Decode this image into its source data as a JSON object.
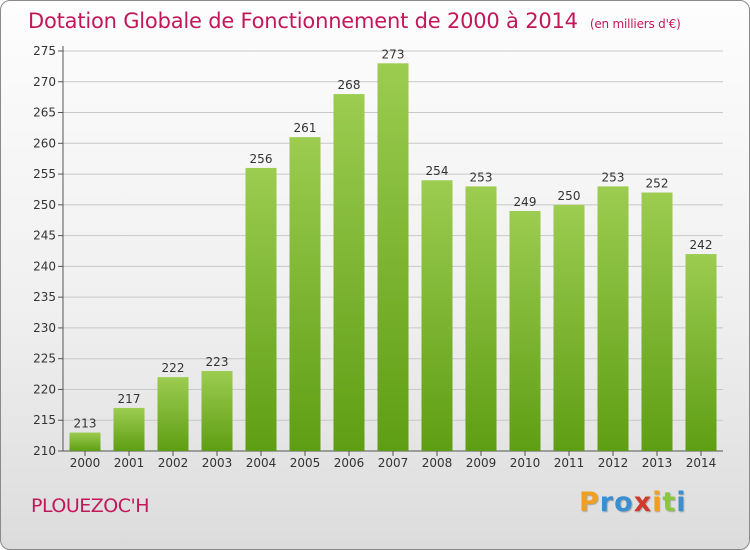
{
  "chart_data": {
    "type": "bar",
    "title": "Dotation Globale de Fonctionnement de 2000 à 2014",
    "subtitle": "(en milliers d'€)",
    "categories": [
      "2000",
      "2001",
      "2002",
      "2003",
      "2004",
      "2005",
      "2006",
      "2007",
      "2008",
      "2009",
      "2010",
      "2011",
      "2012",
      "2013",
      "2014"
    ],
    "values": [
      213,
      217,
      222,
      223,
      256,
      261,
      268,
      273,
      254,
      253,
      249,
      250,
      253,
      252,
      242
    ],
    "ylim": [
      210,
      275
    ],
    "yticks": [
      210,
      215,
      220,
      225,
      230,
      235,
      240,
      245,
      250,
      255,
      260,
      265,
      270,
      275
    ],
    "xlabel": "",
    "ylabel": "",
    "grid": true,
    "bar_color_top": "#9ccc50",
    "bar_color_bottom": "#5e9e14"
  },
  "footer": {
    "commune": "PLOUEZOC'H",
    "logo_letters": [
      "P",
      "r",
      "o",
      "x",
      "i",
      "t",
      "i"
    ],
    "logo_colors": [
      "#f0a020",
      "#3a8fd0",
      "#3a8fd0",
      "#d03a2a",
      "#f0a020",
      "#8cc63f",
      "#3a8fd0"
    ]
  }
}
